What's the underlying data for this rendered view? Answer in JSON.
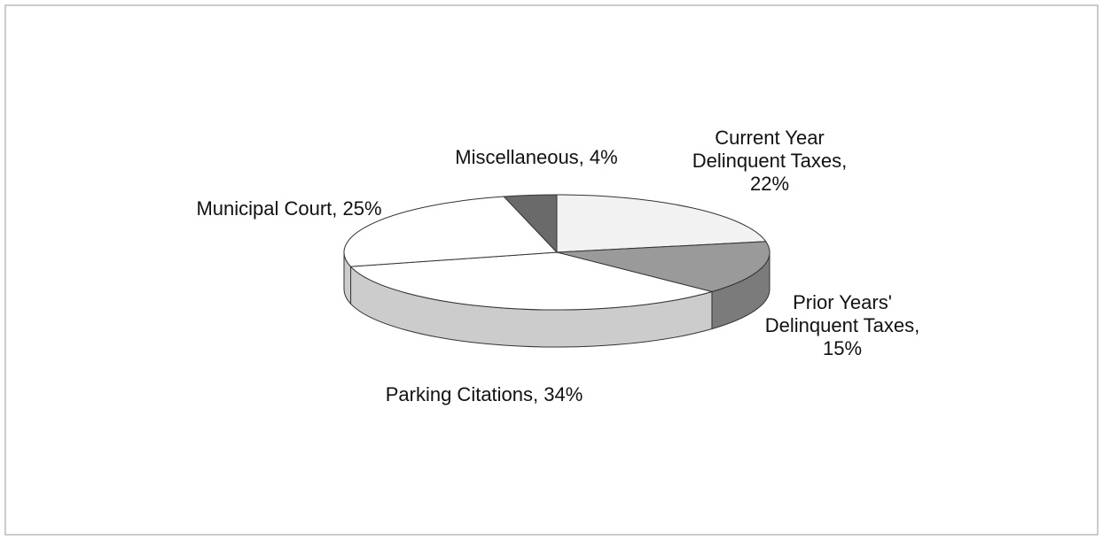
{
  "chart_data": {
    "type": "pie3d",
    "labels": [
      "Current Year Delinquent Taxes, 22%",
      "Prior Years' Delinquent Taxes, 15%",
      "Parking Citations, 34%",
      "Municipal Court, 25%",
      "Miscellaneous, 4%"
    ],
    "values": [
      22,
      15,
      34,
      25,
      4
    ],
    "colors": [
      "#f2f2f2",
      "#9a9a9a",
      "#ffffff",
      "#ffffff",
      "#6a6a6a"
    ]
  }
}
